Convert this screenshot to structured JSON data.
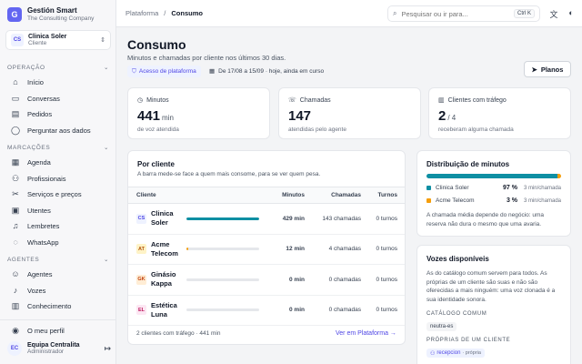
{
  "brand": {
    "name": "Gestión Smart",
    "sub": "The Consulting Company",
    "logo": "G"
  },
  "client_select": {
    "initials": "CS",
    "name": "Clinica Soler",
    "role": "Cliente"
  },
  "sections": {
    "operacao": "OPERAÇÃO",
    "marcacoes": "MARCAÇÕES",
    "agentes": "AGENTES"
  },
  "nav": {
    "inicio": "Início",
    "conversas": "Conversas",
    "pedidos": "Pedidos",
    "perguntar": "Perguntar aos dados",
    "agenda": "Agenda",
    "profissionais": "Profissionais",
    "servicos": "Serviços e preços",
    "utentes": "Utentes",
    "lembretes": "Lembretes",
    "whatsapp": "WhatsApp",
    "agentes": "Agentes",
    "vozes": "Vozes",
    "conhecimento": "Conhecimento",
    "perfil": "O meu perfil"
  },
  "user": {
    "initials": "EC",
    "name": "Equipa Centralita",
    "role": "Administrador"
  },
  "breadcrumb": {
    "root": "Plataforma",
    "sep": "/",
    "current": "Consumo"
  },
  "search": {
    "placeholder": "Pesquisar ou ir para...",
    "shortcut": "Ctrl K"
  },
  "page": {
    "title": "Consumo",
    "subtitle": "Minutos e chamadas por cliente nos últimos 30 dias.",
    "access_pill": "Acesso de plataforma",
    "period": "De 17/08 a 15/09 · hoje, ainda em curso",
    "planos_label": "Planos"
  },
  "stats": [
    {
      "label": "Minutos",
      "value": "441",
      "unit": "min",
      "sub": "de voz atendida"
    },
    {
      "label": "Chamadas",
      "value": "147",
      "unit": "",
      "sub": "atendidas pelo agente"
    },
    {
      "label": "Clientes com tráfego",
      "value": "2",
      "unit": "/ 4",
      "sub": "receberam alguma chamada"
    }
  ],
  "por_cliente": {
    "title": "Por cliente",
    "desc": "A barra mede-se face a quem mais consome, para se ver quem pesa.",
    "headers": {
      "cliente": "Cliente",
      "minutos": "Minutos",
      "chamadas": "Chamadas",
      "turnos": "Turnos"
    },
    "rows": [
      {
        "initials": "CS",
        "name": "Clinica Soler",
        "minutes": "429 min",
        "calls": "143 chamadas",
        "turns": "0 turnos",
        "share": 1.0,
        "badge_bg": "#eef2ff",
        "badge_fg": "#4f46e5",
        "bar": "#0e8fa3"
      },
      {
        "initials": "AT",
        "name": "Acme Telecom",
        "minutes": "12 min",
        "calls": "4 chamadas",
        "turns": "0 turnos",
        "share": 0.028,
        "badge_bg": "#fef3c7",
        "badge_fg": "#b45309",
        "bar": "#f59e0b"
      },
      {
        "initials": "GK",
        "name": "Ginásio Kappa",
        "minutes": "0 min",
        "calls": "0 chamadas",
        "turns": "0 turnos",
        "share": 0,
        "badge_bg": "#ffedd5",
        "badge_fg": "#c2410c",
        "bar": "#f97316"
      },
      {
        "initials": "EL",
        "name": "Estética Luna",
        "minutes": "0 min",
        "calls": "0 chamadas",
        "turns": "0 turnos",
        "share": 0,
        "badge_bg": "#fce7f3",
        "badge_fg": "#be185d",
        "bar": "#ec4899"
      }
    ],
    "footer": "2 clientes com tráfego · 441 min",
    "link": "Ver em Plataforma →"
  },
  "distribuicao": {
    "title": "Distribuição de minutos",
    "items": [
      {
        "name": "Clinica Soler",
        "pct": "97 %",
        "share": 0.97,
        "rate": "3 min/chamada",
        "color": "#0e8fa3"
      },
      {
        "name": "Acme Telecom",
        "pct": "3 %",
        "share": 0.03,
        "rate": "3 min/chamada",
        "color": "#f59e0b"
      }
    ],
    "note": "A chamada média depende do negócio: uma reserva não dura o mesmo que uma avaria."
  },
  "vozes": {
    "title": "Vozes disponíveis",
    "desc": "As do catálogo comum servem para todos. As próprias de um cliente são suas e não são oferecidas a mais ninguém: uma voz clonada é a sua identidade sonora.",
    "catalogo_label": "CATÁLOGO COMUM",
    "catalogo_tag": "neutra-es",
    "proprias_label": "PRÓPRIAS DE UM CLIENTE",
    "proprias_tag": "recepcion",
    "proprias_tag_note": "· própria"
  },
  "colors": {
    "accent": "#4f46e5",
    "teal": "#0e8fa3",
    "amber": "#f59e0b"
  }
}
